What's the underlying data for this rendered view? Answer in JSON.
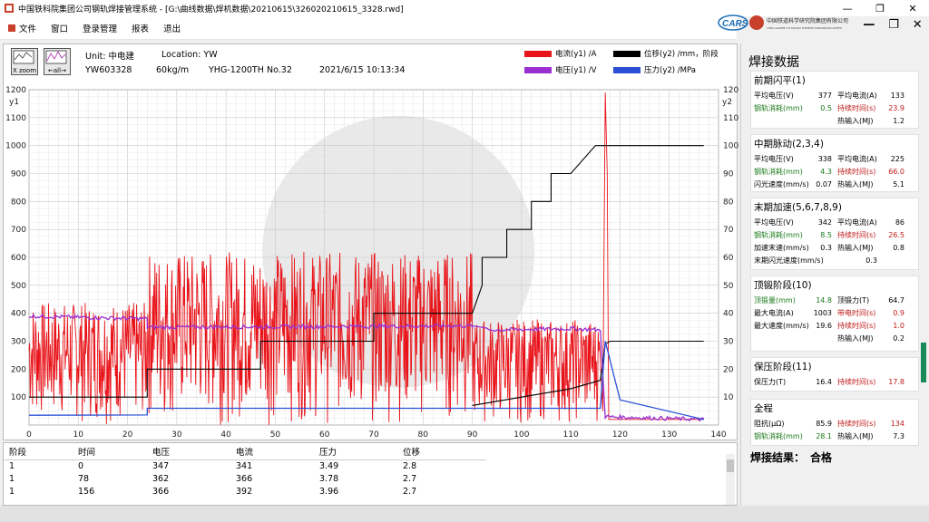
{
  "window": {
    "title": "中国铁科院集团公司钢轨焊接管理系统 - [G:\\曲线数据\\焊机数据\\20210615\\326020210615_3328.rwd]",
    "min": "—",
    "restore": "❐",
    "close": "✕"
  },
  "menu": [
    "文件",
    "窗口",
    "登录管理",
    "报表",
    "退出"
  ],
  "mdi": {
    "min": "—",
    "restore": "❐",
    "close": "✕"
  },
  "logo": {
    "brand": "CARS",
    "name": "中国铁道科学研究院集团有限公司",
    "sub": "CHINA ACADEMY OF RAILWAY SCIENCES CORPORATION LIMITED"
  },
  "toolbar": {
    "xzoom": "X zoom",
    "all": "←all→"
  },
  "header": {
    "unit": "Unit: 中电建",
    "location": "Location: YW",
    "machine_id": "YW603328",
    "rail": "60kg/m",
    "welder": "YHG-1200TH",
    "no": "No.32",
    "datetime": "2021/6/15 10:13:34"
  },
  "legend": [
    {
      "label": "电流(y1) /A",
      "color": "#e8141a"
    },
    {
      "label": "位移(y2) /mm，阶段",
      "color": "#000000"
    },
    {
      "label": "电压(y1) /V",
      "color": "#9b30d0"
    },
    {
      "label": "压力(y2) /MPa",
      "color": "#2a4fd6"
    }
  ],
  "chart_data": {
    "type": "line",
    "x_range": [
      0,
      140
    ],
    "y1_label": "y1",
    "y1_range": [
      0,
      1200
    ],
    "y2_label": "y2",
    "y2_range": [
      0,
      120
    ],
    "x_ticks": [
      0,
      10,
      20,
      30,
      40,
      50,
      60,
      70,
      80,
      90,
      100,
      110,
      120,
      130,
      140
    ],
    "y1_ticks": [
      100,
      200,
      300,
      400,
      500,
      600,
      700,
      800,
      900,
      1000,
      1100,
      1200
    ],
    "y2_ticks": [
      10,
      20,
      30,
      40,
      50,
      60,
      70,
      80,
      90,
      100,
      110,
      120
    ],
    "grid": true,
    "series": [
      {
        "name": "位移(y2) /mm",
        "axis": "y2",
        "color": "#000000",
        "x": [
          0,
          24,
          24,
          47,
          47,
          70,
          70,
          90,
          90,
          92,
          92,
          97,
          97,
          102,
          102,
          106,
          106,
          110,
          110,
          115,
          115,
          117,
          117,
          137
        ],
        "y": [
          10,
          10,
          20,
          20,
          30,
          30,
          40,
          40,
          40,
          50,
          60,
          60,
          70,
          70,
          80,
          80,
          90,
          90,
          90,
          100,
          100,
          100,
          100,
          100
        ]
      },
      {
        "name": "阶段",
        "axis": "y2",
        "color": "#000000",
        "x": [
          90,
          100,
          110,
          116,
          117,
          118,
          125,
          137
        ],
        "y": [
          7,
          10,
          13,
          16,
          29,
          30,
          30,
          30
        ]
      },
      {
        "name": "电压(y1) /V",
        "axis": "y1",
        "color": "#9b30d0",
        "x": [
          0,
          24,
          24,
          90,
          93,
          110,
          116,
          117,
          137
        ],
        "y": [
          390,
          380,
          350,
          355,
          340,
          345,
          340,
          30,
          20
        ]
      },
      {
        "name": "压力(y2) /MPa",
        "axis": "y2",
        "color": "#2a4fd6",
        "x": [
          0,
          24,
          24,
          90,
          110,
          116,
          117,
          120,
          137
        ],
        "y": [
          3.5,
          3.6,
          6,
          6,
          6,
          6,
          30,
          9,
          2
        ]
      },
      {
        "name": "电流(y1) /A",
        "axis": "y1",
        "color": "#e8141a",
        "envelope": [
          {
            "x0": 0,
            "x1": 24,
            "hi": 440,
            "lo": 0
          },
          {
            "x0": 24,
            "x1": 90,
            "hi": 620,
            "lo": 0
          },
          {
            "x0": 90,
            "x1": 116,
            "hi": 380,
            "lo": 0
          }
        ],
        "spike": {
          "x": 117,
          "y": 1190
        }
      }
    ]
  },
  "table": {
    "headers": [
      "阶段",
      "时间",
      "电压",
      "电流",
      "压力",
      "位移"
    ],
    "rows": [
      [
        "1",
        "0",
        "347",
        "341",
        "3.49",
        "2.8"
      ],
      [
        "1",
        "78",
        "362",
        "366",
        "3.78",
        "2.7"
      ],
      [
        "1",
        "156",
        "366",
        "392",
        "3.96",
        "2.7"
      ]
    ]
  },
  "panel": {
    "title": "焊接数据",
    "groups": [
      {
        "title": "前期闪平(1)",
        "rows": [
          [
            {
              "l": "平均电压(V)",
              "v": "377"
            },
            {
              "l": "平均电流(A)",
              "v": "133"
            }
          ],
          [
            {
              "l": "钢轨消耗(mm)",
              "v": "0.5",
              "c": "green"
            },
            {
              "l": "持续时间(s)",
              "v": "23.9",
              "c": "red"
            }
          ],
          [
            {
              "l": "",
              "v": ""
            },
            {
              "l": "热输入(MJ)",
              "v": "1.2"
            }
          ]
        ]
      },
      {
        "title": "中期脉动(2,3,4)",
        "rows": [
          [
            {
              "l": "平均电压(V)",
              "v": "338"
            },
            {
              "l": "平均电流(A)",
              "v": "225"
            }
          ],
          [
            {
              "l": "钢轨消耗(mm)",
              "v": "4.3",
              "c": "green"
            },
            {
              "l": "持续时间(s)",
              "v": "66.0",
              "c": "red"
            }
          ],
          [
            {
              "l": "闪光速度(mm/s)",
              "v": "0.07"
            },
            {
              "l": "热输入(MJ)",
              "v": "5.1"
            }
          ]
        ]
      },
      {
        "title": "末期加速(5,6,7,8,9)",
        "rows": [
          [
            {
              "l": "平均电压(V)",
              "v": "342"
            },
            {
              "l": "平均电流(A)",
              "v": "86"
            }
          ],
          [
            {
              "l": "钢轨消耗(mm)",
              "v": "8.5",
              "c": "green"
            },
            {
              "l": "持续时间(s)",
              "v": "26.5",
              "c": "red"
            }
          ],
          [
            {
              "l": "加速末速(mm/s)",
              "v": "0.3"
            },
            {
              "l": "热输入(MJ)",
              "v": "0.8"
            }
          ],
          [
            {
              "l": "末期闪光速度(mm/s)",
              "v": "0.3"
            }
          ]
        ]
      },
      {
        "title": "顶锻阶段(10)",
        "rows": [
          [
            {
              "l": "顶锻量(mm)",
              "v": "14.8",
              "c": "green"
            },
            {
              "l": "顶锻力(T)",
              "v": "64.7"
            }
          ],
          [
            {
              "l": "最大电流(A)",
              "v": "1003"
            },
            {
              "l": "带电时间(s)",
              "v": "0.9",
              "c": "red"
            }
          ],
          [
            {
              "l": "最大速度(mm/s)",
              "v": "19.6"
            },
            {
              "l": "持续时间(s)",
              "v": "1.0",
              "c": "red"
            }
          ],
          [
            {
              "l": "",
              "v": ""
            },
            {
              "l": "热输入(MJ)",
              "v": "0.2"
            }
          ]
        ]
      },
      {
        "title": "保压阶段(11)",
        "rows": [
          [
            {
              "l": "保压力(T)",
              "v": "16.4"
            },
            {
              "l": "持续时间(s)",
              "v": "17.8",
              "c": "red"
            }
          ]
        ]
      },
      {
        "title": "全程",
        "rows": [
          [
            {
              "l": "阻抗(μΩ)",
              "v": "85.9"
            },
            {
              "l": "持续时间(s)",
              "v": "134",
              "c": "red"
            }
          ],
          [
            {
              "l": "钢轨消耗(mm)",
              "v": "28.1",
              "c": "green"
            },
            {
              "l": "热输入(MJ)",
              "v": "7.3"
            }
          ]
        ]
      }
    ],
    "verdict_label": "焊接结果：",
    "verdict_value": "合格"
  }
}
